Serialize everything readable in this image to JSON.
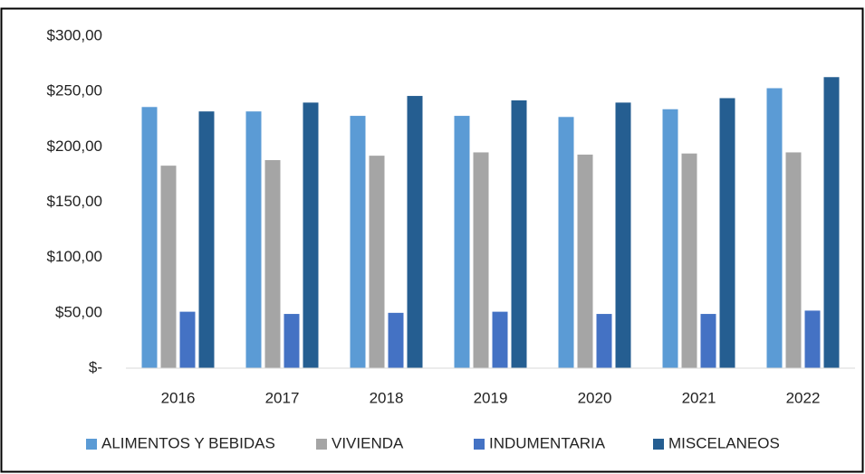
{
  "chart_data": {
    "type": "bar",
    "categories": [
      "2016",
      "2017",
      "2018",
      "2019",
      "2020",
      "2021",
      "2022"
    ],
    "series": [
      {
        "name": "ALIMENTOS  Y BEBIDAS",
        "color": "#5b9bd5",
        "values": [
          236,
          232,
          228,
          228,
          227,
          234,
          253
        ]
      },
      {
        "name": "VIVIENDA",
        "color": "#a5a5a5",
        "values": [
          183,
          188,
          192,
          195,
          193,
          194,
          195
        ]
      },
      {
        "name": "INDUMENTARIA",
        "color": "#4472c4",
        "values": [
          51,
          49,
          50,
          51,
          49,
          49,
          52
        ]
      },
      {
        "name": "MISCELANEOS",
        "color": "#255e91",
        "values": [
          232,
          240,
          246,
          242,
          240,
          244,
          263
        ]
      }
    ],
    "ylim": [
      0,
      300
    ],
    "yticks": [
      {
        "value": 0,
        "label": "$-"
      },
      {
        "value": 50,
        "label": "$50,00"
      },
      {
        "value": 100,
        "label": "$100,00"
      },
      {
        "value": 150,
        "label": "$150,00"
      },
      {
        "value": 200,
        "label": "$200,00"
      },
      {
        "value": 250,
        "label": "$250,00"
      },
      {
        "value": 300,
        "label": "$300,00"
      }
    ],
    "grid": false,
    "legend": "bottom"
  }
}
